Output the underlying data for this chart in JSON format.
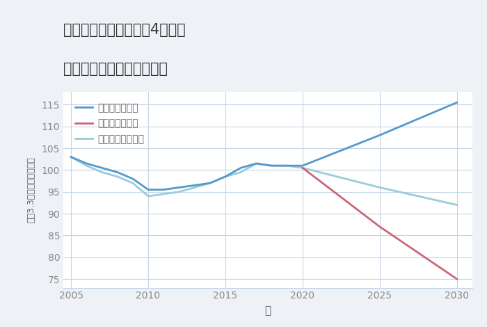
{
  "title_line1": "三重県名張市桔梗が丘4番町の",
  "title_line2": "中古マンションの価格推移",
  "xlabel": "年",
  "ylabel": "坪（3.3㎡）単価（万円）",
  "background_color": "#eef2f7",
  "plot_background_color": "#ffffff",
  "good_scenario": {
    "label": "グッドシナリオ",
    "color": "#5599cc",
    "x": [
      2005,
      2006,
      2007,
      2008,
      2009,
      2010,
      2011,
      2012,
      2013,
      2014,
      2015,
      2016,
      2017,
      2018,
      2019,
      2020,
      2025,
      2030
    ],
    "y": [
      103,
      101.5,
      100.5,
      99.5,
      98,
      95.5,
      95.5,
      96,
      96.5,
      97,
      98.5,
      100.5,
      101.5,
      101,
      101,
      101,
      108,
      115.5
    ]
  },
  "bad_scenario": {
    "label": "バッドシナリオ",
    "color": "#cc6677",
    "x": [
      2020,
      2025,
      2030
    ],
    "y": [
      100.5,
      87,
      75
    ]
  },
  "normal_scenario": {
    "label": "ノーマルシナリオ",
    "color": "#99ccdd",
    "x": [
      2005,
      2006,
      2007,
      2008,
      2009,
      2010,
      2011,
      2012,
      2013,
      2014,
      2015,
      2016,
      2017,
      2018,
      2019,
      2020,
      2025,
      2030
    ],
    "y": [
      103,
      101,
      99.5,
      98.5,
      97,
      94,
      94.5,
      95,
      96,
      97,
      98.5,
      99.5,
      101.5,
      101,
      101,
      100.5,
      96,
      92
    ]
  },
  "xlim": [
    2004.5,
    2031
  ],
  "ylim": [
    73,
    118
  ],
  "yticks": [
    75,
    80,
    85,
    90,
    95,
    100,
    105,
    110,
    115
  ],
  "xticks": [
    2005,
    2010,
    2015,
    2020,
    2025,
    2030
  ],
  "grid_color": "#c5d5e5",
  "title_color": "#333333",
  "axis_label_color": "#666666",
  "tick_color": "#888888"
}
